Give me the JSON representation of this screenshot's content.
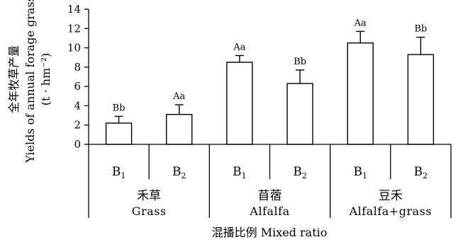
{
  "chart_data": {
    "type": "bar",
    "ylim": [
      0,
      14
    ],
    "yticks": [
      "0",
      "2",
      "4",
      "6",
      "8",
      "10",
      "12",
      "14"
    ],
    "ylabel": {
      "zh": "全年牧草产量",
      "en": "Yields of annual forage grass",
      "unit": "(t · hm⁻²)"
    },
    "xlabel": "混播比例 Mixed ratio",
    "groups": [
      {
        "zh": "禾草",
        "en": "Grass",
        "bars": [
          {
            "base": "B",
            "sub": "1",
            "value": 2.2,
            "error": 0.7,
            "sig": "Bb"
          },
          {
            "base": "B",
            "sub": "2",
            "value": 3.1,
            "error": 1.0,
            "sig": "Aa"
          }
        ]
      },
      {
        "zh": "苜蓿",
        "en": "Alfalfa",
        "bars": [
          {
            "base": "B",
            "sub": "1",
            "value": 8.5,
            "error": 0.7,
            "sig": "Aa"
          },
          {
            "base": "B",
            "sub": "2",
            "value": 6.3,
            "error": 1.4,
            "sig": "Bb"
          }
        ]
      },
      {
        "zh": "豆禾",
        "en": "Alfalfa+grass",
        "bars": [
          {
            "base": "B",
            "sub": "1",
            "value": 10.5,
            "error": 1.2,
            "sig": "Aa"
          },
          {
            "base": "B",
            "sub": "2",
            "value": 9.3,
            "error": 1.8,
            "sig": "Bb"
          }
        ]
      }
    ]
  }
}
